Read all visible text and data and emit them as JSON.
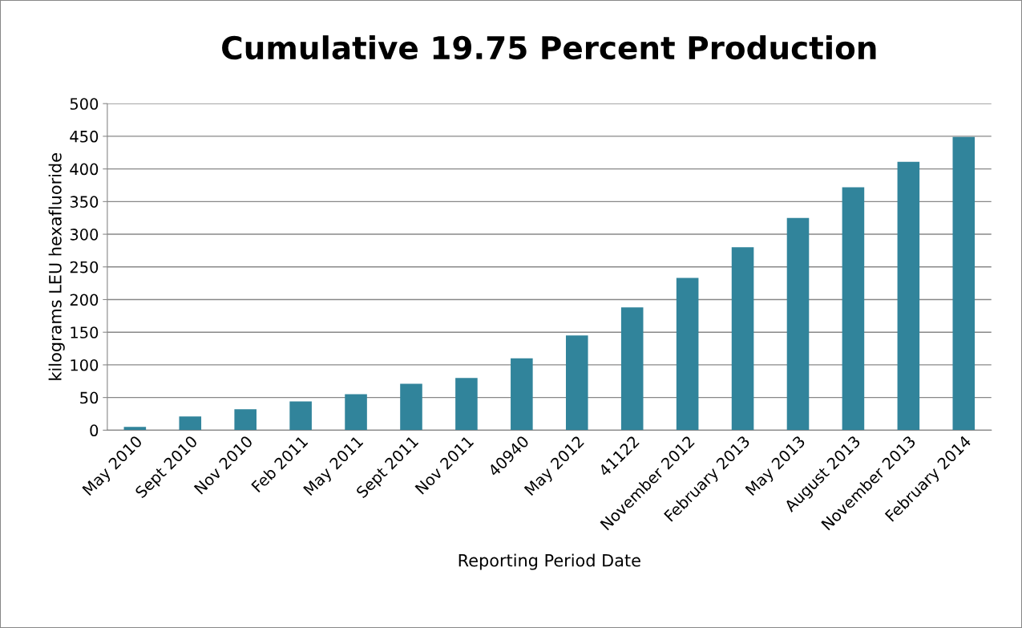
{
  "chart_data": {
    "type": "bar",
    "title": "Cumulative 19.75 Percent Production",
    "xlabel": "Reporting Period Date",
    "ylabel": "kilograms LEU hexafluoride",
    "categories": [
      "May 2010",
      "Sept 2010",
      "Nov 2010",
      "Feb 2011",
      "May 2011",
      "Sept 2011",
      "Nov 2011",
      "40940",
      "May 2012",
      "41122",
      "November 2012",
      "February 2013",
      "May 2013",
      "August 2013",
      "November 2013",
      "February 2014"
    ],
    "values": [
      5,
      21,
      32,
      44,
      55,
      71,
      80,
      110,
      145,
      188,
      233,
      280,
      325,
      372,
      411,
      449
    ],
    "color": "#31849b",
    "ylim": [
      0,
      500
    ],
    "yticks": [
      0,
      50,
      100,
      150,
      200,
      250,
      300,
      350,
      400,
      450,
      500
    ],
    "grid": "y",
    "legend": false
  }
}
